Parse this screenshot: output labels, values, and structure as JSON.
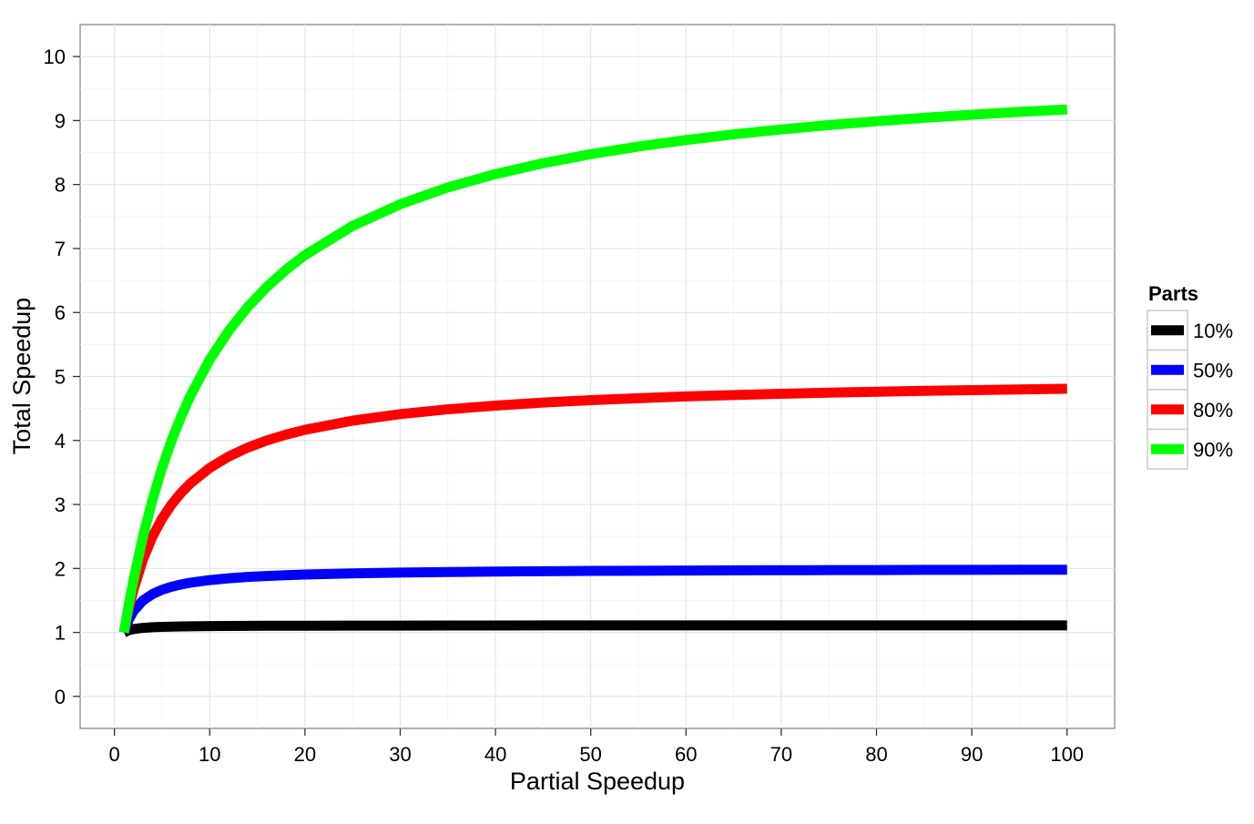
{
  "chart_data": {
    "type": "line",
    "xlabel": "Partial Speedup",
    "ylabel": "Total Speedup",
    "xlim": [
      -3.6,
      105
    ],
    "ylim": [
      -0.5,
      10.5
    ],
    "x_ticks": [
      0,
      10,
      20,
      30,
      40,
      50,
      60,
      70,
      80,
      90,
      100
    ],
    "y_ticks": [
      0,
      1,
      2,
      3,
      4,
      5,
      6,
      7,
      8,
      9,
      10
    ],
    "grid": true,
    "legend": {
      "title": "Parts",
      "placement": "right"
    },
    "x": [
      1,
      1.5,
      2,
      3,
      4,
      5,
      6,
      7,
      8,
      10,
      12,
      14,
      16,
      18,
      20,
      25,
      30,
      35,
      40,
      45,
      50,
      55,
      60,
      65,
      70,
      75,
      80,
      85,
      90,
      95,
      100
    ],
    "series": [
      {
        "name": "10%",
        "color": "#000000",
        "values": [
          1,
          1.034,
          1.053,
          1.071,
          1.081,
          1.087,
          1.091,
          1.094,
          1.096,
          1.099,
          1.101,
          1.103,
          1.104,
          1.105,
          1.105,
          1.106,
          1.107,
          1.108,
          1.108,
          1.109,
          1.109,
          1.109,
          1.109,
          1.11,
          1.11,
          1.11,
          1.11,
          1.11,
          1.11,
          1.11,
          1.11
        ]
      },
      {
        "name": "50%",
        "color": "#0000ff",
        "values": [
          1,
          1.2,
          1.333,
          1.5,
          1.6,
          1.667,
          1.714,
          1.75,
          1.778,
          1.818,
          1.846,
          1.867,
          1.882,
          1.895,
          1.905,
          1.923,
          1.935,
          1.944,
          1.951,
          1.957,
          1.961,
          1.964,
          1.967,
          1.97,
          1.972,
          1.974,
          1.975,
          1.977,
          1.978,
          1.979,
          1.98
        ]
      },
      {
        "name": "80%",
        "color": "#ff0000",
        "values": [
          1,
          1.364,
          1.667,
          2.143,
          2.5,
          2.778,
          3.0,
          3.182,
          3.333,
          3.571,
          3.75,
          3.889,
          4.0,
          4.091,
          4.167,
          4.31,
          4.412,
          4.487,
          4.545,
          4.592,
          4.63,
          4.661,
          4.688,
          4.71,
          4.73,
          4.747,
          4.762,
          4.775,
          4.787,
          4.798,
          4.808
        ]
      },
      {
        "name": "90%",
        "color": "#00ff00",
        "values": [
          1,
          1.429,
          1.818,
          2.5,
          3.077,
          3.571,
          4.0,
          4.375,
          4.706,
          5.263,
          5.714,
          6.087,
          6.4,
          6.667,
          6.897,
          7.353,
          7.692,
          7.955,
          8.163,
          8.333,
          8.475,
          8.594,
          8.696,
          8.784,
          8.861,
          8.929,
          8.989,
          9.043,
          9.091,
          9.135,
          9.174
        ]
      }
    ]
  }
}
